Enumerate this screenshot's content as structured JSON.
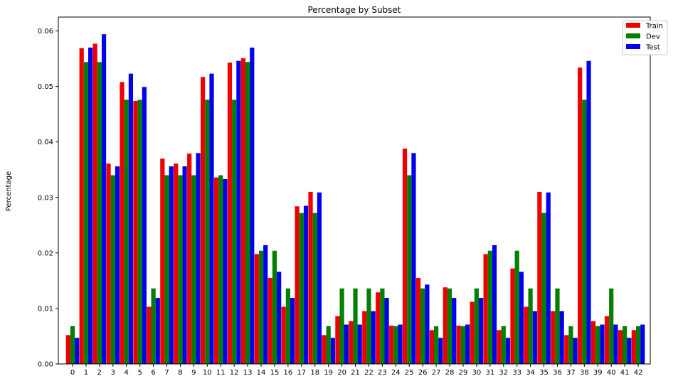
{
  "chart_data": {
    "type": "bar",
    "title": "Percentage by Subset",
    "xlabel": "",
    "ylabel": "Percentage",
    "ylim": [
      0,
      0.0625
    ],
    "yticks": [
      "0.00",
      "0.01",
      "0.02",
      "0.03",
      "0.04",
      "0.05",
      "0.06"
    ],
    "categories": [
      "0",
      "1",
      "2",
      "3",
      "4",
      "5",
      "6",
      "7",
      "8",
      "9",
      "10",
      "11",
      "12",
      "13",
      "14",
      "15",
      "16",
      "17",
      "18",
      "19",
      "20",
      "21",
      "22",
      "23",
      "24",
      "25",
      "26",
      "27",
      "28",
      "29",
      "30",
      "31",
      "32",
      "33",
      "34",
      "35",
      "36",
      "37",
      "38",
      "39",
      "40",
      "41",
      "42"
    ],
    "legend_position": "top-right",
    "grid": false,
    "series": [
      {
        "name": "Train",
        "color": "#ee0000",
        "values": [
          0.0052,
          0.0569,
          0.0577,
          0.0361,
          0.0508,
          0.0474,
          0.0103,
          0.037,
          0.0361,
          0.0379,
          0.0517,
          0.0336,
          0.0543,
          0.0551,
          0.0198,
          0.0155,
          0.0103,
          0.0284,
          0.031,
          0.0052,
          0.0086,
          0.0077,
          0.0095,
          0.0129,
          0.0069,
          0.0388,
          0.0155,
          0.0061,
          0.0138,
          0.0069,
          0.0112,
          0.0198,
          0.0061,
          0.0172,
          0.0103,
          0.031,
          0.0095,
          0.0052,
          0.0534,
          0.0077,
          0.0086,
          0.0061,
          0.0061
        ]
      },
      {
        "name": "Dev",
        "color": "#008000",
        "values": [
          0.0068,
          0.0544,
          0.0544,
          0.034,
          0.0476,
          0.0476,
          0.0136,
          0.034,
          0.034,
          0.034,
          0.0476,
          0.034,
          0.0476,
          0.0544,
          0.0204,
          0.0204,
          0.0136,
          0.0272,
          0.0272,
          0.0068,
          0.0136,
          0.0136,
          0.0136,
          0.0136,
          0.0068,
          0.034,
          0.0136,
          0.0068,
          0.0136,
          0.0068,
          0.0136,
          0.0204,
          0.0068,
          0.0204,
          0.0136,
          0.0272,
          0.0136,
          0.0068,
          0.0476,
          0.0068,
          0.0136,
          0.0068,
          0.0068
        ]
      },
      {
        "name": "Test",
        "color": "#0000ee",
        "values": [
          0.0047,
          0.057,
          0.0594,
          0.0356,
          0.0523,
          0.0499,
          0.0119,
          0.0356,
          0.0356,
          0.038,
          0.0523,
          0.0333,
          0.0546,
          0.057,
          0.0214,
          0.0166,
          0.0119,
          0.0285,
          0.0309,
          0.0047,
          0.0071,
          0.0071,
          0.0095,
          0.0119,
          0.0071,
          0.038,
          0.0143,
          0.0047,
          0.0119,
          0.0071,
          0.0119,
          0.0214,
          0.0047,
          0.0166,
          0.0095,
          0.0309,
          0.0095,
          0.0047,
          0.0546,
          0.0071,
          0.0071,
          0.0047,
          0.0071
        ]
      }
    ]
  }
}
